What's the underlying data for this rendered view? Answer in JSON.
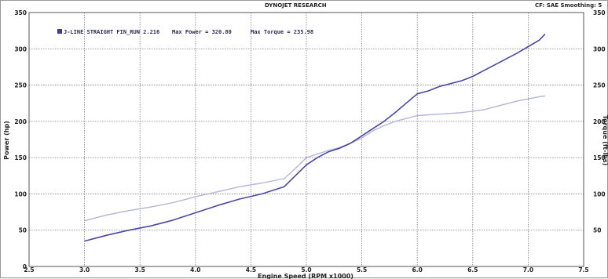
{
  "header": {
    "title": "DYNOJET RESEARCH",
    "right_note": "CF: SAE  Smoothing: 5"
  },
  "legend": {
    "run_label": "J-LINE STRAIGHT FIN_RUN 2.216",
    "max_power_text": "Max Power = 320.80",
    "max_torque_text": "Max Torque = 235.98"
  },
  "colors": {
    "power": "#4a48a6",
    "torque": "#b4b4dc",
    "grid": "#7a7a7a",
    "legend_box": "#3c3c9c"
  },
  "chart_data": {
    "type": "line",
    "title": "DYNOJET RESEARCH",
    "xlabel": "Engine Speed (RPM x1000)",
    "ylabel": "Power (hp)",
    "ylabel_right": "Torque (ft-lbs)",
    "xlim": [
      2.5,
      7.5
    ],
    "ylim": [
      0,
      350
    ],
    "x_ticks": [
      "2.5",
      "3.0",
      "3.5",
      "4.0",
      "4.5",
      "5.0",
      "5.5",
      "6.0",
      "6.5",
      "7.0",
      "7.5"
    ],
    "y_ticks": [
      "0",
      "50",
      "100",
      "150",
      "200",
      "250",
      "300",
      "350"
    ],
    "y_ticks_right": [
      "50",
      "100",
      "150",
      "200",
      "250",
      "300",
      "350"
    ],
    "grid": true,
    "legend_position": "top-left",
    "series": [
      {
        "name": "Power",
        "x": [
          3.0,
          3.2,
          3.4,
          3.6,
          3.8,
          4.0,
          4.2,
          4.4,
          4.6,
          4.8,
          4.9,
          5.0,
          5.1,
          5.2,
          5.3,
          5.4,
          5.5,
          5.6,
          5.7,
          5.8,
          5.9,
          6.0,
          6.1,
          6.2,
          6.3,
          6.4,
          6.5,
          6.6,
          6.7,
          6.8,
          6.9,
          7.0,
          7.1,
          7.15
        ],
        "values": [
          35,
          43,
          50,
          56,
          64,
          74,
          84,
          93,
          100,
          110,
          125,
          140,
          150,
          158,
          163,
          170,
          180,
          190,
          200,
          212,
          225,
          238,
          242,
          248,
          252,
          256,
          262,
          270,
          278,
          286,
          294,
          303,
          312,
          320
        ]
      },
      {
        "name": "Torque",
        "x": [
          3.0,
          3.2,
          3.4,
          3.6,
          3.8,
          4.0,
          4.2,
          4.4,
          4.6,
          4.8,
          4.9,
          5.0,
          5.1,
          5.2,
          5.3,
          5.4,
          5.5,
          5.6,
          5.7,
          5.8,
          5.9,
          6.0,
          6.1,
          6.2,
          6.3,
          6.4,
          6.5,
          6.6,
          6.7,
          6.8,
          6.9,
          7.0,
          7.1,
          7.15
        ],
        "values": [
          63,
          71,
          77,
          82,
          88,
          96,
          103,
          110,
          115,
          121,
          135,
          150,
          155,
          160,
          164,
          170,
          177,
          187,
          194,
          200,
          204,
          208,
          209,
          210,
          211,
          212,
          214,
          216,
          220,
          224,
          228,
          231,
          234,
          235
        ]
      }
    ]
  }
}
